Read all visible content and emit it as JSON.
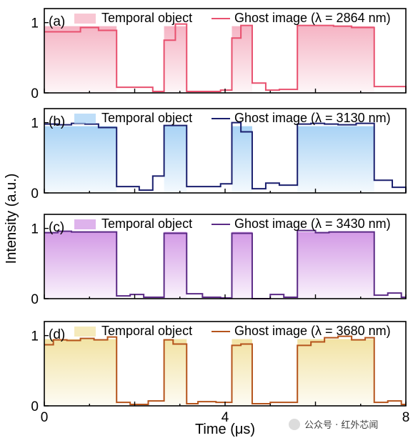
{
  "watermark": "公众号 · 红外芯闻",
  "chart_data": {
    "type": "line",
    "xlabel": "Time (μs)",
    "ylabel": "Intensity (a.u.)",
    "xlim": [
      0,
      8
    ],
    "ylim": [
      0,
      1.2
    ],
    "xticks": [
      "0",
      "4",
      "8"
    ],
    "yticks": [
      "0",
      "1"
    ],
    "legend_position": "top",
    "grid": false,
    "panels": [
      {
        "panel_label": "(a)",
        "color": "#e8506e",
        "fill_color": "#f5b4c4",
        "series": [
          {
            "name": "Temporal object",
            "style": "shaded-area",
            "x": [
              0,
              1.6,
              1.6,
              2.65,
              2.65,
              3.15,
              3.15,
              4.15,
              4.15,
              4.6,
              4.6,
              5.6,
              5.6,
              7.3,
              7.3,
              8.0
            ],
            "y": [
              0.95,
              0.95,
              0.0,
              0.0,
              0.95,
              0.95,
              0.0,
              0.0,
              0.95,
              0.95,
              0.0,
              0.0,
              0.95,
              0.95,
              0.0,
              0.0
            ]
          },
          {
            "name": "Ghost image (λ = 2864 nm)",
            "style": "step-line",
            "x": [
              0,
              0.4,
              0.8,
              1.2,
              1.6,
              2.0,
              2.4,
              2.65,
              2.9,
              3.15,
              3.5,
              3.9,
              4.15,
              4.35,
              4.6,
              4.9,
              5.2,
              5.6,
              6.0,
              6.4,
              6.8,
              7.3,
              7.7,
              8.0
            ],
            "y": [
              0.87,
              0.87,
              0.93,
              0.89,
              0.08,
              0.08,
              0.02,
              0.75,
              0.98,
              0.02,
              0.02,
              0.04,
              0.78,
              0.96,
              0.14,
              0.04,
              0.05,
              0.96,
              0.96,
              0.95,
              0.93,
              0.09,
              0.09,
              0.06
            ]
          }
        ]
      },
      {
        "panel_label": "(b)",
        "color": "#1a1f6e",
        "fill_color": "#a9d3f5",
        "series": [
          {
            "name": "Temporal object",
            "style": "shaded-area",
            "x": [
              0,
              1.6,
              1.6,
              2.65,
              2.65,
              3.15,
              3.15,
              4.15,
              4.15,
              4.6,
              4.6,
              5.6,
              5.6,
              7.3,
              7.3,
              8.0
            ],
            "y": [
              0.95,
              0.95,
              0.0,
              0.0,
              0.95,
              0.95,
              0.0,
              0.0,
              0.95,
              0.95,
              0.0,
              0.0,
              0.95,
              0.95,
              0.0,
              0.0
            ]
          },
          {
            "name": "Ghost image (λ = 3130 nm)",
            "style": "step-line",
            "x": [
              0,
              0.3,
              0.6,
              0.9,
              1.2,
              1.6,
              2.1,
              2.4,
              2.65,
              3.15,
              3.5,
              3.9,
              4.15,
              4.35,
              4.6,
              4.9,
              5.2,
              5.6,
              5.9,
              6.2,
              6.5,
              6.9,
              7.3,
              7.7,
              8.0
            ],
            "y": [
              0.98,
              0.97,
              0.99,
              0.98,
              0.93,
              0.09,
              0.04,
              0.24,
              0.96,
              0.09,
              0.09,
              0.13,
              1.0,
              0.87,
              0.06,
              0.14,
              0.11,
              0.98,
              0.99,
              0.98,
              0.97,
              0.99,
              0.18,
              0.08,
              0.01
            ]
          }
        ]
      },
      {
        "panel_label": "(c)",
        "color": "#5b2a86",
        "fill_color": "#d39ae6",
        "series": [
          {
            "name": "Temporal object",
            "style": "shaded-area",
            "x": [
              0,
              1.6,
              1.6,
              2.65,
              2.65,
              3.15,
              3.15,
              4.15,
              4.15,
              4.6,
              4.6,
              5.6,
              5.6,
              7.3,
              7.3,
              8.0
            ],
            "y": [
              0.95,
              0.95,
              0.0,
              0.0,
              0.95,
              0.95,
              0.0,
              0.0,
              0.95,
              0.95,
              0.0,
              0.0,
              0.95,
              0.95,
              0.0,
              0.0
            ]
          },
          {
            "name": "Ghost image (λ = 3430 nm)",
            "style": "step-line",
            "x": [
              0,
              0.3,
              0.6,
              1.0,
              1.6,
              1.9,
              2.2,
              2.65,
              3.15,
              3.5,
              3.9,
              4.15,
              4.6,
              5.0,
              5.3,
              5.6,
              6.0,
              6.3,
              6.7,
              7.3,
              7.6,
              7.9,
              8.0
            ],
            "y": [
              0.94,
              0.96,
              0.95,
              0.95,
              0.04,
              0.06,
              0.02,
              0.93,
              0.07,
              0.02,
              0.01,
              0.93,
              0.0,
              0.06,
              0.02,
              0.97,
              0.94,
              0.95,
              0.95,
              0.05,
              0.08,
              0.02,
              0.02
            ]
          }
        ]
      },
      {
        "panel_label": "(d)",
        "color": "#b5541c",
        "fill_color": "#f2e3a4",
        "series": [
          {
            "name": "Temporal object",
            "style": "shaded-area",
            "x": [
              0,
              1.6,
              1.6,
              2.65,
              2.65,
              3.15,
              3.15,
              4.15,
              4.15,
              4.6,
              4.6,
              5.6,
              5.6,
              7.3,
              7.3,
              8.0
            ],
            "y": [
              0.95,
              0.95,
              0.0,
              0.0,
              0.95,
              0.95,
              0.0,
              0.0,
              0.95,
              0.95,
              0.0,
              0.0,
              0.95,
              0.95,
              0.0,
              0.0
            ]
          },
          {
            "name": "Ghost image (λ = 3680 nm)",
            "style": "step-line",
            "x": [
              0,
              0.2,
              0.5,
              0.8,
              1.1,
              1.4,
              1.6,
              1.9,
              2.3,
              2.65,
              2.85,
              3.15,
              3.4,
              3.8,
              4.15,
              4.35,
              4.6,
              5.0,
              5.6,
              5.9,
              6.2,
              6.5,
              6.8,
              7.1,
              7.3,
              7.6,
              7.9,
              8.0
            ],
            "y": [
              0.87,
              0.94,
              0.93,
              0.96,
              0.94,
              0.98,
              0.05,
              0.02,
              0.07,
              0.94,
              0.88,
              0.03,
              0.06,
              0.05,
              0.86,
              0.88,
              0.03,
              0.05,
              0.86,
              0.91,
              0.97,
              0.99,
              0.94,
              0.97,
              0.05,
              0.07,
              0.02,
              0.02
            ]
          }
        ]
      }
    ]
  }
}
